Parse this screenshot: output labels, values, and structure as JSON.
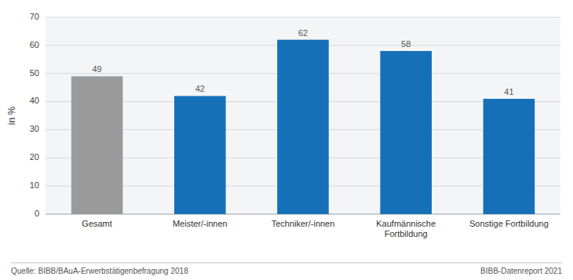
{
  "chart_data": {
    "type": "bar",
    "categories": [
      "Gesamt",
      "Meister/-innen",
      "Techniker/-innen",
      "Kaufmännische\nFortbildung",
      "Sonstige Fortbildung"
    ],
    "values": [
      49,
      42,
      62,
      58,
      41
    ],
    "colors": [
      "#9a9a9a",
      "#1570b8",
      "#1570b8",
      "#1570b8",
      "#1570b8"
    ],
    "ylabel": "in %",
    "ylim": [
      0,
      70
    ],
    "yticks": [
      0,
      10,
      20,
      30,
      40,
      50,
      60,
      70
    ],
    "grid": true,
    "data_labels": true,
    "annotations": [
      "Quelle: BIBB/BAuA-Erwerbstätigenbefragung 2018",
      "BIBB-Datenreport 2021"
    ]
  }
}
